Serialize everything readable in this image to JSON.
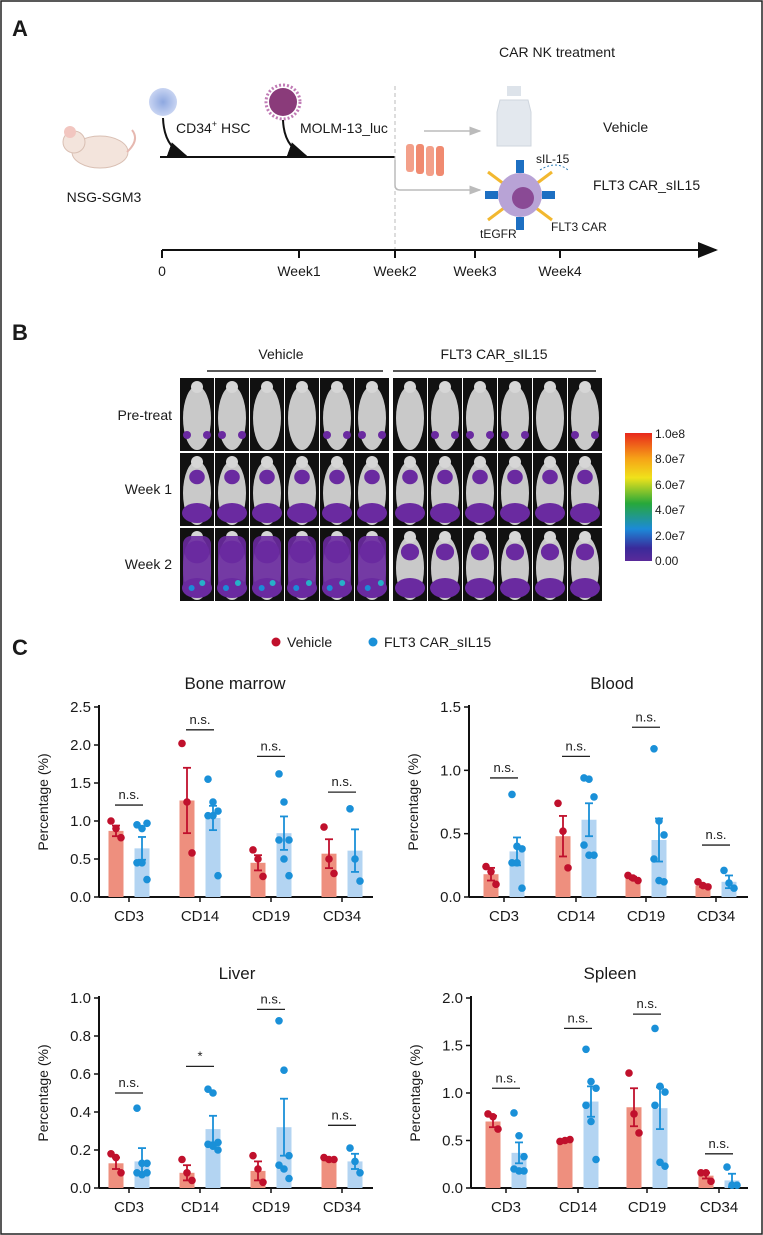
{
  "panels": {
    "a": "A",
    "b": "B",
    "c": "C"
  },
  "panel_a": {
    "header": "CAR NK treatment",
    "mouse_strain": "NSG-SGM3",
    "hsc_label": "CD34",
    "hsc_sup": "+",
    "hsc_suffix": " HSC",
    "tumor_label": "MOLM-13_luc",
    "arm_vehicle": "Vehicle",
    "arm_car": "FLT3 CAR_sIL15",
    "cell_labels": {
      "sil15": "sIL-15",
      "flt3car": "FLT3 CAR",
      "tegfr": "tEGFR"
    },
    "timeline": [
      "0",
      "Week1",
      "Week2",
      "Week3",
      "Week4"
    ]
  },
  "panel_b": {
    "groups": [
      "Vehicle",
      "FLT3 CAR_sIL15"
    ],
    "rows": [
      "Pre-treat",
      "Week 1",
      "Week 2"
    ],
    "mice_per_group": 6,
    "colorbar": {
      "labels": [
        "1.0e8",
        "8.0e7",
        "6.0e7",
        "4.0e7",
        "2.0e7",
        "0.00"
      ],
      "colors": [
        "#e8281c",
        "#f6a317",
        "#f0e21b",
        "#27a83a",
        "#1c8ad8",
        "#3a2a9a",
        "#5a2a9a"
      ]
    }
  },
  "legend": [
    {
      "name": "Vehicle",
      "color": "#c0102c"
    },
    {
      "name": "FLT3 CAR_sIL15",
      "color": "#1a90d8"
    }
  ],
  "colors": {
    "vehicle_bar": "#ee8f7e",
    "vehicle_dot": "#c0102c",
    "car_bar": "#b3d4f2",
    "car_dot": "#1a90d8"
  },
  "chart_data": [
    {
      "type": "bar",
      "title": "Bone marrow",
      "ylabel": "Percentage (%)",
      "xlabel": "",
      "ylim": [
        0,
        2.5
      ],
      "yticks": [
        "0.0",
        "0.5",
        "1.0",
        "1.5",
        "2.0",
        "2.5"
      ],
      "categories": [
        "CD3",
        "CD14",
        "CD19",
        "CD34"
      ],
      "series": [
        {
          "name": "Vehicle",
          "values": [
            0.87,
            1.27,
            0.45,
            0.57
          ],
          "sem": [
            0.07,
            0.43,
            0.1,
            0.19
          ],
          "points": [
            [
              1.0,
              0.9,
              0.78
            ],
            [
              2.02,
              1.25,
              0.58
            ],
            [
              0.62,
              0.5,
              0.27
            ],
            [
              0.92,
              0.5,
              0.31
            ]
          ]
        },
        {
          "name": "FLT3 CAR_sIL15",
          "values": [
            0.64,
            1.04,
            0.84,
            0.61
          ],
          "sem": [
            0.15,
            0.16,
            0.22,
            0.28
          ],
          "points": [
            [
              0.95,
              0.9,
              0.97,
              0.45,
              0.45,
              0.23
            ],
            [
              1.55,
              1.25,
              1.13,
              1.07,
              1.07,
              0.28
            ],
            [
              1.62,
              1.25,
              0.75,
              0.75,
              0.5,
              0.28
            ],
            [
              1.16,
              0.5,
              0.21
            ]
          ]
        }
      ],
      "significance": [
        {
          "label": "n.s.",
          "y": 1.21
        },
        {
          "label": "n.s.",
          "y": 2.2
        },
        {
          "label": "n.s.",
          "y": 1.85
        },
        {
          "label": "n.s.",
          "y": 1.38
        }
      ]
    },
    {
      "type": "bar",
      "title": "Blood",
      "ylabel": "Percentage (%)",
      "xlabel": "",
      "ylim": [
        0,
        1.5
      ],
      "yticks": [
        "0.0",
        "0.5",
        "1.0",
        "1.5"
      ],
      "categories": [
        "CD3",
        "CD14",
        "CD19",
        "CD34"
      ],
      "series": [
        {
          "name": "Vehicle",
          "values": [
            0.18,
            0.48,
            0.15,
            0.09
          ],
          "sem": [
            0.05,
            0.16,
            0.01,
            0.01
          ],
          "points": [
            [
              0.24,
              0.2,
              0.1
            ],
            [
              0.74,
              0.52,
              0.23
            ],
            [
              0.17,
              0.15,
              0.13
            ],
            [
              0.12,
              0.09,
              0.08
            ]
          ]
        },
        {
          "name": "FLT3 CAR_sIL15",
          "values": [
            0.36,
            0.61,
            0.45,
            0.12
          ],
          "sem": [
            0.11,
            0.13,
            0.17,
            0.05
          ],
          "points": [
            [
              0.81,
              0.4,
              0.38,
              0.27,
              0.27,
              0.07
            ],
            [
              0.94,
              0.93,
              0.79,
              0.41,
              0.33,
              0.33
            ],
            [
              1.17,
              0.6,
              0.49,
              0.3,
              0.13,
              0.12
            ],
            [
              0.21,
              0.11,
              0.07
            ]
          ]
        }
      ],
      "significance": [
        {
          "label": "n.s.",
          "y": 0.94
        },
        {
          "label": "n.s.",
          "y": 1.11
        },
        {
          "label": "n.s.",
          "y": 1.34
        },
        {
          "label": "n.s.",
          "y": 0.41
        }
      ]
    },
    {
      "type": "bar",
      "title": "Liver",
      "ylabel": "Percentage (%)",
      "xlabel": "",
      "ylim": [
        0,
        1.0
      ],
      "yticks": [
        "0.0",
        "0.2",
        "0.4",
        "0.6",
        "0.8",
        "1.0"
      ],
      "categories": [
        "CD3",
        "CD14",
        "CD19",
        "CD34"
      ],
      "series": [
        {
          "name": "Vehicle",
          "values": [
            0.13,
            0.08,
            0.09,
            0.15
          ],
          "sem": [
            0.03,
            0.04,
            0.05,
            0.005
          ],
          "points": [
            [
              0.18,
              0.16,
              0.08
            ],
            [
              0.15,
              0.08,
              0.04
            ],
            [
              0.17,
              0.1,
              0.03
            ],
            [
              0.16,
              0.15,
              0.15
            ]
          ]
        },
        {
          "name": "FLT3 CAR_sIL15",
          "values": [
            0.14,
            0.31,
            0.32,
            0.14
          ],
          "sem": [
            0.07,
            0.07,
            0.15,
            0.04
          ],
          "points": [
            [
              0.42,
              0.13,
              0.13,
              0.08,
              0.07,
              0.08
            ],
            [
              0.52,
              0.5,
              0.24,
              0.23,
              0.22,
              0.2
            ],
            [
              0.88,
              0.62,
              0.17,
              0.12,
              0.1,
              0.05
            ],
            [
              0.21,
              0.14,
              0.08
            ]
          ]
        }
      ],
      "significance": [
        {
          "label": "n.s.",
          "y": 0.5
        },
        {
          "label": "*",
          "y": 0.64
        },
        {
          "label": "n.s.",
          "y": 0.94
        },
        {
          "label": "n.s.",
          "y": 0.33
        }
      ]
    },
    {
      "type": "bar",
      "title": "Spleen",
      "ylabel": "Percentage (%)",
      "xlabel": "",
      "ylim": [
        0,
        2.0
      ],
      "yticks": [
        "0.0",
        "0.5",
        "1.0",
        "1.5",
        "2.0"
      ],
      "categories": [
        "CD3",
        "CD14",
        "CD19",
        "CD34"
      ],
      "series": [
        {
          "name": "Vehicle",
          "values": [
            0.7,
            0.5,
            0.85,
            0.13
          ],
          "sem": [
            0.06,
            0.01,
            0.2,
            0.03
          ],
          "points": [
            [
              0.78,
              0.75,
              0.62
            ],
            [
              0.49,
              0.5,
              0.51
            ],
            [
              1.21,
              0.78,
              0.58
            ],
            [
              0.16,
              0.16,
              0.07
            ]
          ]
        },
        {
          "name": "FLT3 CAR_sIL15",
          "values": [
            0.37,
            0.91,
            0.84,
            0.08
          ],
          "sem": [
            0.11,
            0.16,
            0.22,
            0.07
          ],
          "points": [
            [
              0.79,
              0.55,
              0.33,
              0.2,
              0.18,
              0.18
            ],
            [
              1.46,
              1.12,
              1.05,
              0.87,
              0.7,
              0.3
            ],
            [
              1.68,
              1.07,
              1.01,
              0.87,
              0.27,
              0.23
            ],
            [
              0.22,
              0.03,
              0.03
            ]
          ]
        }
      ],
      "significance": [
        {
          "label": "n.s.",
          "y": 1.05
        },
        {
          "label": "n.s.",
          "y": 1.68
        },
        {
          "label": "n.s.",
          "y": 1.83
        },
        {
          "label": "n.s.",
          "y": 0.36
        }
      ]
    }
  ]
}
